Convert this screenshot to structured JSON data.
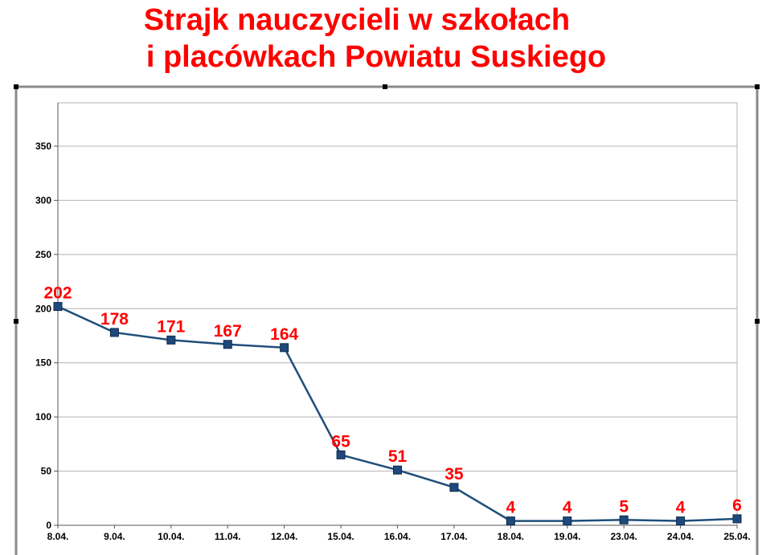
{
  "chart_data": {
    "type": "line",
    "title": [
      "Strajk nauczycieli w szkołach",
      "i placówkach Powiatu Suskiego"
    ],
    "categories": [
      "8.04.",
      "9.04.",
      "10.04.",
      "11.04.",
      "12.04.",
      "15.04.",
      "16.04.",
      "17.04.",
      "18.04.",
      "19.04.",
      "23.04.",
      "24.04.",
      "25.04."
    ],
    "series": [
      {
        "values": [
          202,
          178,
          171,
          167,
          164,
          65,
          51,
          35,
          4,
          4,
          5,
          4,
          6
        ]
      }
    ],
    "data_labels": [
      "202",
      "178",
      "171",
      "167",
      "164",
      "65",
      "51",
      "35",
      "4",
      "4",
      "5",
      "4",
      "6"
    ],
    "ylim": [
      0,
      390
    ],
    "yticks": [
      "0",
      "50",
      "100",
      "150",
      "200",
      "250",
      "300",
      "350"
    ],
    "ytick_values": [
      0,
      50,
      100,
      150,
      200,
      250,
      300,
      350
    ],
    "grid": true,
    "legend": "none",
    "colors": {
      "title": "#ff0000",
      "line": "#1f4e79",
      "marker": "#1f497d",
      "data_label": "#ff0000",
      "grid": "#b3b3b3",
      "frame": "#8a8a8a"
    }
  }
}
